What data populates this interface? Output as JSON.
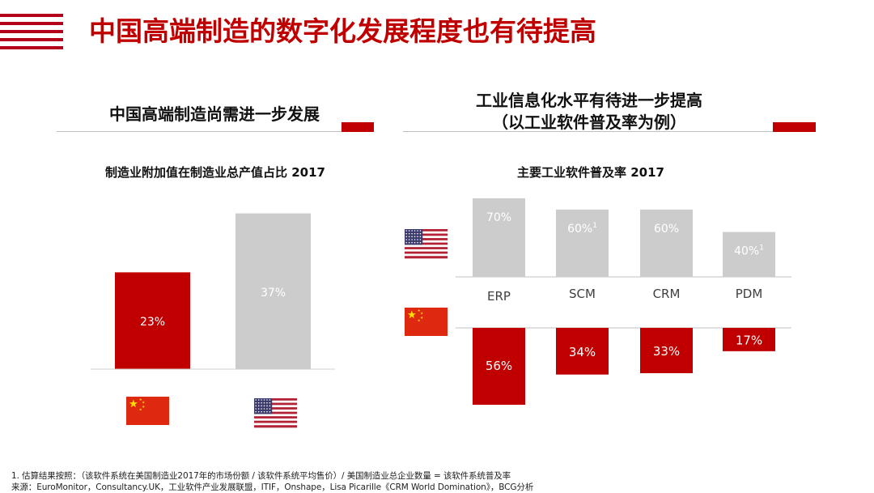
{
  "header": {
    "title": "中国高端制造的数字化发展程度也有待提高"
  },
  "left_section": {
    "title": "中国高端制造尚需进一步发展"
  },
  "right_section": {
    "title_line1": "工业信息化水平有待进一步提高",
    "title_line2": "（以工业软件普及率为例）"
  },
  "chart_data": [
    {
      "type": "bar",
      "title": "制造业附加值在制造业总产值占比 2017",
      "categories": [
        "China",
        "USA"
      ],
      "category_icons": [
        "china-flag-icon",
        "us-flag-icon"
      ],
      "values": [
        23,
        37
      ],
      "value_labels": [
        "23%",
        "37%"
      ],
      "unit": "%",
      "colors": [
        "#c00000",
        "#cccccc"
      ],
      "ylim": [
        0,
        40
      ],
      "xlabel": "",
      "ylabel": ""
    },
    {
      "type": "bar",
      "title": "主要工业软件普及率 2017",
      "categories": [
        "ERP",
        "SCM",
        "CRM",
        "PDM"
      ],
      "series": [
        {
          "country": "USA",
          "icon": "us-flag-icon",
          "values": [
            70,
            60,
            60,
            40
          ],
          "labels": [
            "70%",
            "60%",
            "60%",
            "40%"
          ],
          "footnote_marks": [
            "",
            "1",
            "",
            "1"
          ],
          "color": "#cccccc",
          "direction": "up"
        },
        {
          "country": "China",
          "icon": "china-flag-icon",
          "values": [
            56,
            34,
            33,
            17
          ],
          "labels": [
            "56%",
            "34%",
            "33%",
            "17%"
          ],
          "footnote_marks": [
            "",
            "",
            "",
            ""
          ],
          "color": "#c00000",
          "direction": "down"
        }
      ],
      "ylim": [
        0,
        70
      ]
    }
  ],
  "footnotes": {
    "line1": "1. 估算结果按照：（该软件系统在美国制造业2017年的市场份额 / 该软件系统平均售价）/ 美国制造业总企业数量 = 该软件系统普及率",
    "line2": "来源：EuroMonitor，Consultancy.UK，工业软件产业发展联盟，ITIF，Onshape，Lisa Picarille《CRM World Domination》，BCG分析"
  },
  "colors": {
    "accent_red": "#c00000",
    "stripe_red": "#b3001b",
    "bar_grey": "#cccccc",
    "rule_grey": "#bfbfbf"
  }
}
